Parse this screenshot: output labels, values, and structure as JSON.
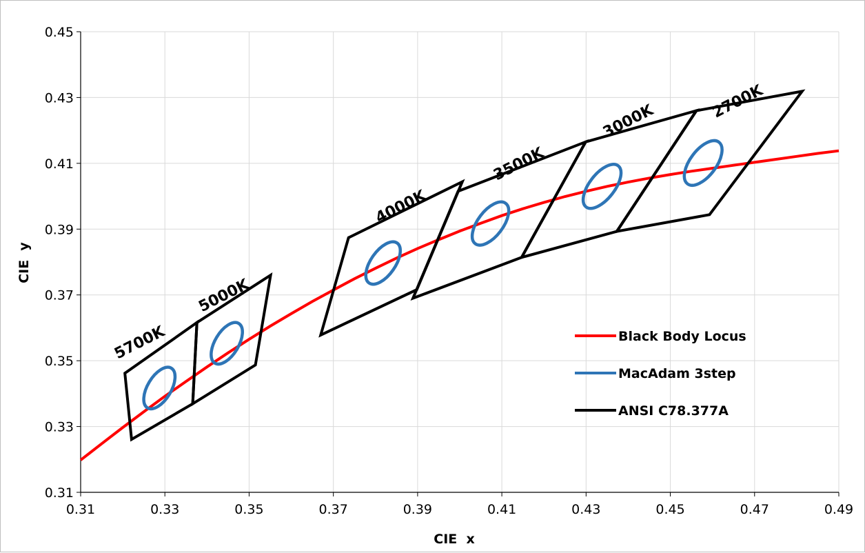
{
  "chart_data": {
    "type": "line",
    "title": "",
    "xlabel": "CIE  x",
    "ylabel": "CIE  y",
    "xlim": [
      0.31,
      0.49
    ],
    "ylim": [
      0.31,
      0.45
    ],
    "x_ticks": [
      "0.31",
      "0.33",
      "0.35",
      "0.37",
      "0.39",
      "0.41",
      "0.43",
      "0.45",
      "0.47",
      "0.49"
    ],
    "y_ticks": [
      "0.31",
      "0.33",
      "0.35",
      "0.37",
      "0.39",
      "0.41",
      "0.43",
      "0.45"
    ],
    "grid": true,
    "legend_position": "right-middle",
    "legend": [
      {
        "name": "Black Body Locus",
        "color": "#ff0000"
      },
      {
        "name": "MacAdam 3step",
        "color": "#2e75b6"
      },
      {
        "name": "ANSI C78.377A",
        "color": "#000000"
      }
    ],
    "series": [
      {
        "name": "Black Body Locus",
        "color": "#ff0000",
        "points": [
          [
            0.31,
            0.3198
          ],
          [
            0.315,
            0.3248
          ],
          [
            0.32,
            0.3297
          ],
          [
            0.325,
            0.3345
          ],
          [
            0.33,
            0.3392
          ],
          [
            0.335,
            0.3437
          ],
          [
            0.34,
            0.3481
          ],
          [
            0.345,
            0.3524
          ],
          [
            0.35,
            0.3565
          ],
          [
            0.355,
            0.3605
          ],
          [
            0.36,
            0.3643
          ],
          [
            0.365,
            0.368
          ],
          [
            0.37,
            0.3715
          ],
          [
            0.375,
            0.3749
          ],
          [
            0.38,
            0.3781
          ],
          [
            0.385,
            0.3812
          ],
          [
            0.39,
            0.3841
          ],
          [
            0.395,
            0.3868
          ],
          [
            0.4,
            0.3894
          ],
          [
            0.405,
            0.3918
          ],
          [
            0.41,
            0.3941
          ],
          [
            0.415,
            0.3962
          ],
          [
            0.42,
            0.3981
          ],
          [
            0.425,
            0.3999
          ],
          [
            0.43,
            0.4015
          ],
          [
            0.435,
            0.403
          ],
          [
            0.44,
            0.4043
          ],
          [
            0.445,
            0.4055
          ],
          [
            0.45,
            0.4066
          ],
          [
            0.455,
            0.4076
          ],
          [
            0.46,
            0.4085
          ],
          [
            0.465,
            0.4094
          ],
          [
            0.47,
            0.4103
          ],
          [
            0.475,
            0.4112
          ],
          [
            0.48,
            0.4121
          ],
          [
            0.485,
            0.413
          ],
          [
            0.49,
            0.4138
          ]
        ]
      },
      {
        "name": "MacAdam 3step",
        "color": "#2e75b6",
        "ellipses": [
          {
            "bin": "5700K",
            "cx": 0.3287,
            "cy": 0.3417,
            "a": 0.0055,
            "b": 0.0028,
            "angle_deg": 59
          },
          {
            "bin": "5000K",
            "cx": 0.3447,
            "cy": 0.3553,
            "a": 0.0055,
            "b": 0.0028,
            "angle_deg": 59
          },
          {
            "bin": "4000K",
            "cx": 0.3818,
            "cy": 0.3797,
            "a": 0.0058,
            "b": 0.0029,
            "angle_deg": 55
          },
          {
            "bin": "3500K",
            "cx": 0.4073,
            "cy": 0.3917,
            "a": 0.006,
            "b": 0.003,
            "angle_deg": 53
          },
          {
            "bin": "3000K",
            "cx": 0.4338,
            "cy": 0.403,
            "a": 0.0062,
            "b": 0.003,
            "angle_deg": 52
          },
          {
            "bin": "2700K",
            "cx": 0.4578,
            "cy": 0.4101,
            "a": 0.0062,
            "b": 0.0031,
            "angle_deg": 53
          }
        ]
      },
      {
        "name": "ANSI C78.377A",
        "color": "#000000",
        "quadrangles": [
          {
            "bin": "5700K",
            "points": [
              [
                0.3205,
                0.3462
              ],
              [
                0.3376,
                0.3616
              ],
              [
                0.3366,
                0.3369
              ],
              [
                0.3221,
                0.3261
              ]
            ]
          },
          {
            "bin": "5000K",
            "points": [
              [
                0.3376,
                0.3616
              ],
              [
                0.3551,
                0.376
              ],
              [
                0.3515,
                0.3487
              ],
              [
                0.3366,
                0.3369
              ]
            ]
          },
          {
            "bin": "4000K",
            "points": [
              [
                0.3736,
                0.3874
              ],
              [
                0.4006,
                0.4044
              ],
              [
                0.3898,
                0.3716
              ],
              [
                0.367,
                0.3578
              ]
            ]
          },
          {
            "bin": "3500K",
            "points": [
              [
                0.3996,
                0.4015
              ],
              [
                0.4299,
                0.4165
              ],
              [
                0.4147,
                0.3814
              ],
              [
                0.3889,
                0.369
              ]
            ]
          },
          {
            "bin": "3000K",
            "points": [
              [
                0.4299,
                0.4165
              ],
              [
                0.4562,
                0.426
              ],
              [
                0.4373,
                0.3893
              ],
              [
                0.4147,
                0.3814
              ]
            ]
          },
          {
            "bin": "2700K",
            "points": [
              [
                0.4562,
                0.426
              ],
              [
                0.4813,
                0.4319
              ],
              [
                0.4593,
                0.3944
              ],
              [
                0.4373,
                0.3893
              ]
            ]
          }
        ]
      }
    ],
    "annotations": [
      {
        "text": "5700K",
        "x": 0.3245,
        "y": 0.3542
      },
      {
        "text": "5000K",
        "x": 0.3445,
        "y": 0.3685
      },
      {
        "text": "4000K",
        "x": 0.3865,
        "y": 0.3955
      },
      {
        "text": "3500K",
        "x": 0.4145,
        "y": 0.4085
      },
      {
        "text": "3000K",
        "x": 0.4405,
        "y": 0.4215
      },
      {
        "text": "2700K",
        "x": 0.4665,
        "y": 0.4275
      }
    ]
  }
}
